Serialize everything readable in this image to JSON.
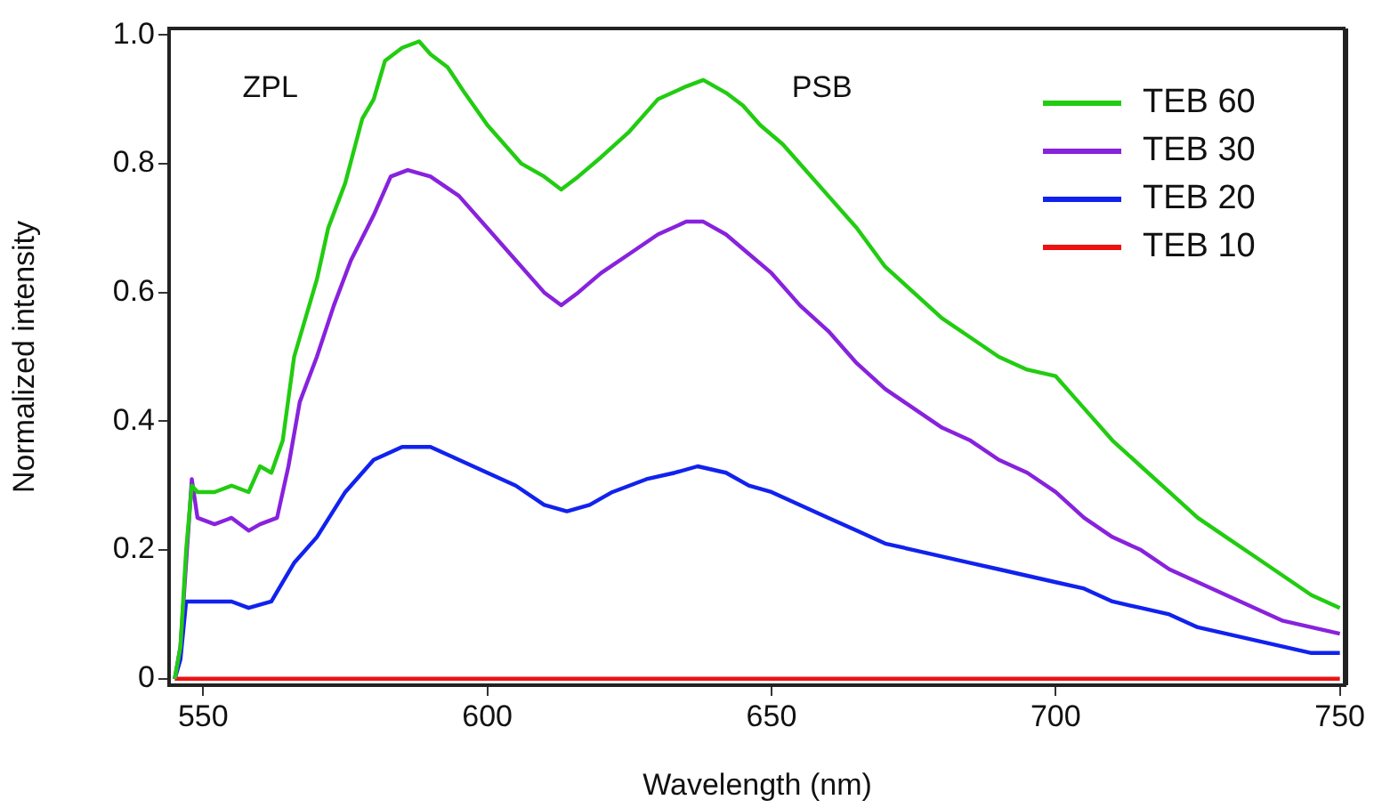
{
  "chart_data": {
    "type": "line",
    "xlabel": "Wavelength (nm)",
    "ylabel": "Normalized intensity",
    "xlim": [
      544,
      751
    ],
    "ylim": [
      -0.01,
      1.01
    ],
    "xticks": [
      550,
      600,
      650,
      700,
      750
    ],
    "yticks": [
      0,
      0.2,
      0.4,
      0.6,
      0.8,
      {
        "value": 1,
        "label": "1.0"
      }
    ],
    "grid": false,
    "legend": "top right",
    "marker": "none",
    "line_style": "solid",
    "annotations": [
      "ZPL",
      "PSB"
    ],
    "series": [
      {
        "name": "TEB 60",
        "color": "#22cc11",
        "x": [
          545,
          546,
          547,
          548,
          549,
          552,
          555,
          558,
          560,
          562,
          564,
          566,
          568,
          570,
          572,
          575,
          578,
          580,
          582,
          585,
          588,
          590,
          593,
          596,
          600,
          603,
          606,
          610,
          613,
          616,
          620,
          625,
          630,
          635,
          638,
          642,
          645,
          648,
          652,
          656,
          660,
          665,
          670,
          675,
          680,
          685,
          690,
          695,
          700,
          705,
          710,
          715,
          720,
          725,
          730,
          735,
          740,
          745,
          750
        ],
        "values": [
          0,
          0.05,
          0.2,
          0.3,
          0.29,
          0.29,
          0.3,
          0.29,
          0.33,
          0.32,
          0.37,
          0.5,
          0.56,
          0.62,
          0.7,
          0.77,
          0.87,
          0.9,
          0.96,
          0.98,
          0.99,
          0.97,
          0.95,
          0.91,
          0.86,
          0.83,
          0.8,
          0.78,
          0.76,
          0.78,
          0.81,
          0.85,
          0.9,
          0.92,
          0.93,
          0.91,
          0.89,
          0.86,
          0.83,
          0.79,
          0.75,
          0.7,
          0.64,
          0.6,
          0.56,
          0.53,
          0.5,
          0.48,
          0.47,
          0.42,
          0.37,
          0.33,
          0.29,
          0.25,
          0.22,
          0.19,
          0.16,
          0.13,
          0.11
        ]
      },
      {
        "name": "TEB 30",
        "color": "#8822dd",
        "x": [
          545,
          546,
          547,
          548,
          549,
          552,
          555,
          558,
          560,
          563,
          565,
          567,
          570,
          573,
          576,
          580,
          583,
          586,
          590,
          595,
          600,
          605,
          610,
          613,
          616,
          620,
          625,
          630,
          635,
          638,
          642,
          646,
          650,
          655,
          660,
          665,
          670,
          675,
          680,
          685,
          690,
          695,
          700,
          705,
          710,
          715,
          720,
          725,
          730,
          735,
          740,
          745,
          750
        ],
        "values": [
          0,
          0.05,
          null,
          0.31,
          0.25,
          0.24,
          0.25,
          0.23,
          0.24,
          0.25,
          0.33,
          0.43,
          0.5,
          0.58,
          0.65,
          0.72,
          0.78,
          0.79,
          0.78,
          0.75,
          0.7,
          0.65,
          0.6,
          0.58,
          0.6,
          0.63,
          0.66,
          0.69,
          0.71,
          0.71,
          0.69,
          0.66,
          0.63,
          0.58,
          0.54,
          0.49,
          0.45,
          0.42,
          0.39,
          0.37,
          0.34,
          0.32,
          0.29,
          0.25,
          0.22,
          0.2,
          0.17,
          0.15,
          0.13,
          0.11,
          0.09,
          0.08,
          0.07
        ]
      },
      {
        "name": "TEB 20",
        "color": "#1122ee",
        "x": [
          545,
          546,
          547,
          550,
          555,
          558,
          562,
          564,
          566,
          570,
          575,
          580,
          585,
          590,
          595,
          600,
          605,
          610,
          614,
          618,
          622,
          628,
          633,
          637,
          642,
          646,
          650,
          655,
          660,
          665,
          670,
          675,
          680,
          685,
          690,
          695,
          700,
          705,
          710,
          715,
          720,
          725,
          730,
          735,
          740,
          745,
          750
        ],
        "values": [
          0,
          0.03,
          0.12,
          0.12,
          0.12,
          0.11,
          0.12,
          0.15,
          0.18,
          0.22,
          0.29,
          0.34,
          0.36,
          0.36,
          0.34,
          0.32,
          0.3,
          0.27,
          0.26,
          0.27,
          0.29,
          0.31,
          0.32,
          0.33,
          0.32,
          0.3,
          0.29,
          0.27,
          0.25,
          0.23,
          0.21,
          0.2,
          0.19,
          0.18,
          0.17,
          0.16,
          0.15,
          0.14,
          0.12,
          0.11,
          0.1,
          0.08,
          0.07,
          0.06,
          0.05,
          0.04,
          0.04
        ]
      },
      {
        "name": "TEB 10",
        "color": "#ee1111",
        "x": [
          545,
          600,
          650,
          700,
          750
        ],
        "values": [
          0,
          0,
          0,
          0,
          0
        ]
      }
    ]
  }
}
